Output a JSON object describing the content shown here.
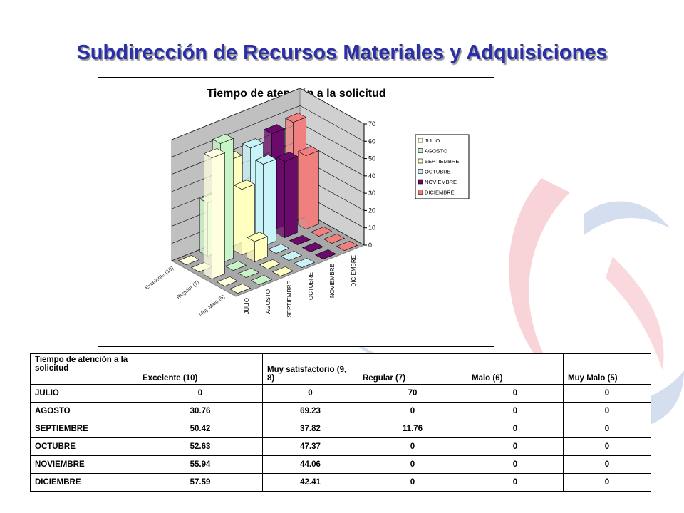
{
  "title": "Subdirección de Recursos Materiales y Adquisiciones",
  "chart_data": {
    "type": "bar3d",
    "title": "Tiempo de atención a la solicitud",
    "categories": [
      "Excelente (10)",
      null,
      "Regular (7)",
      null,
      "Muy Malo (5)"
    ],
    "series": [
      {
        "name": "JULIO",
        "color": "#ffffe0",
        "values": [
          0,
          0,
          70,
          0,
          0
        ]
      },
      {
        "name": "AGOSTO",
        "color": "#c8f5c8",
        "values": [
          30.76,
          69.23,
          0,
          0,
          0
        ]
      },
      {
        "name": "SEPTIEMBRE",
        "color": "#ffffc0",
        "values": [
          50.42,
          37.82,
          11.76,
          0,
          0
        ]
      },
      {
        "name": "OCTUBRE",
        "color": "#c8f3f8",
        "values": [
          52.63,
          47.37,
          0,
          0,
          0
        ]
      },
      {
        "name": "NOVIEMBRE",
        "color": "#6a0a6a",
        "values": [
          55.94,
          44.06,
          0,
          0,
          0
        ]
      },
      {
        "name": "DICIEMBRE",
        "color": "#f08080",
        "values": [
          57.59,
          42.41,
          0,
          0,
          0
        ]
      }
    ],
    "ylim": [
      0,
      70
    ],
    "yticks": [
      0,
      10,
      20,
      30,
      40,
      50,
      60,
      70
    ],
    "grid": true,
    "legend": "right"
  },
  "table": {
    "header": [
      "Tiempo de atención a la solicitud",
      "Excelente (10)",
      "Muy satisfactorio (9, 8)",
      "Regular (7)",
      "Malo (6)",
      "Muy Malo (5)"
    ]
  }
}
